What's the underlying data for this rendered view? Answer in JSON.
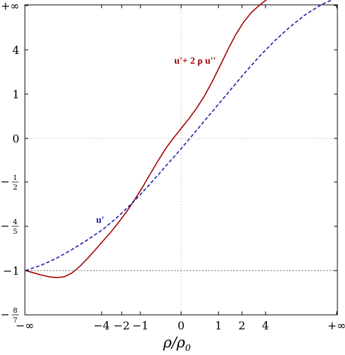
{
  "chart_data": {
    "type": "line",
    "title": "",
    "xlabel": {
      "main": "ρ/ρ",
      "sub": "0"
    },
    "ylabel": "",
    "x_domain": "compactified: -∞ … +∞",
    "x_ticks": [
      "−∞",
      "−4",
      "−2",
      "−1",
      "0",
      "1",
      "2",
      "4",
      "+∞"
    ],
    "y_ticks": [
      {
        "type": "text",
        "label": "+∞"
      },
      {
        "type": "text",
        "label": "4"
      },
      {
        "type": "text",
        "label": "1"
      },
      {
        "type": "text",
        "label": "0"
      },
      {
        "type": "frac",
        "sign": "−",
        "num": "1",
        "den": "2"
      },
      {
        "type": "frac",
        "sign": "−",
        "num": "4",
        "den": "5"
      },
      {
        "type": "text",
        "label": "−1"
      },
      {
        "type": "frac",
        "sign": "−",
        "num": "8",
        "den": "7"
      }
    ],
    "reference_lines": [
      {
        "axis": "x",
        "value": "0",
        "style": "dotted"
      },
      {
        "axis": "y",
        "value": "0",
        "style": "dotted"
      },
      {
        "axis": "y",
        "value": "−1",
        "style": "dotted"
      }
    ],
    "series": [
      {
        "name": "u'+ 2 ρ u''",
        "color": "#a00000",
        "dash": "solid",
        "points": [
          [
            -1.0,
            -1.0
          ],
          [
            -0.95,
            -1.05
          ],
          [
            -0.9,
            -1.1
          ],
          [
            -0.85,
            -1.14
          ],
          [
            -0.8,
            -1.16
          ],
          [
            -0.75,
            -1.14
          ],
          [
            -0.7,
            -1.05
          ],
          [
            -0.65,
            -0.9
          ],
          [
            -0.6,
            -0.72
          ],
          [
            -0.55,
            -0.52
          ],
          [
            -0.5,
            -0.32
          ],
          [
            -0.45,
            -0.12
          ],
          [
            -0.4,
            0.1
          ],
          [
            -0.35,
            0.34
          ],
          [
            -0.3,
            0.6
          ],
          [
            -0.25,
            0.88
          ],
          [
            -0.2,
            1.18
          ],
          [
            -0.15,
            1.48
          ],
          [
            -0.1,
            1.76
          ],
          [
            -0.05,
            2.0
          ],
          [
            0.0,
            2.22
          ],
          [
            0.05,
            2.44
          ],
          [
            0.1,
            2.68
          ],
          [
            0.15,
            2.96
          ],
          [
            0.2,
            3.28
          ],
          [
            0.25,
            3.64
          ],
          [
            0.3,
            4.0
          ],
          [
            0.35,
            4.34
          ],
          [
            0.4,
            4.62
          ],
          [
            0.45,
            4.84
          ],
          [
            0.5,
            5.0
          ],
          [
            0.55,
            5.14
          ],
          [
            0.6,
            5.24
          ],
          [
            0.65,
            5.31
          ],
          [
            0.7,
            5.36
          ],
          [
            0.75,
            5.39
          ],
          [
            0.8,
            5.41
          ],
          [
            0.85,
            5.415
          ],
          [
            0.9,
            5.42
          ],
          [
            0.95,
            5.42
          ],
          [
            1.0,
            5.42
          ]
        ]
      },
      {
        "name": "u'",
        "color": "#1a1aa6",
        "dash": "dashed",
        "points": [
          [
            -1.0,
            -1.0
          ],
          [
            -0.9,
            -0.88
          ],
          [
            -0.8,
            -0.72
          ],
          [
            -0.7,
            -0.52
          ],
          [
            -0.6,
            -0.3
          ],
          [
            -0.5,
            -0.06
          ],
          [
            -0.4,
            0.24
          ],
          [
            -0.3,
            0.58
          ],
          [
            -0.2,
            0.96
          ],
          [
            -0.1,
            1.36
          ],
          [
            0.0,
            1.76
          ],
          [
            0.1,
            2.18
          ],
          [
            0.2,
            2.6
          ],
          [
            0.3,
            3.02
          ],
          [
            0.4,
            3.44
          ],
          [
            0.5,
            3.84
          ],
          [
            0.6,
            4.2
          ],
          [
            0.7,
            4.52
          ],
          [
            0.8,
            4.8
          ],
          [
            0.9,
            5.02
          ],
          [
            1.0,
            5.18
          ],
          [
            1.1,
            5.3
          ],
          [
            1.2,
            5.37
          ],
          [
            1.3,
            5.41
          ],
          [
            1.4,
            5.42
          ]
        ]
      }
    ],
    "series_labels": [
      "u'+ 2 ρ u''",
      "u'"
    ],
    "grid": false,
    "frame": true
  }
}
